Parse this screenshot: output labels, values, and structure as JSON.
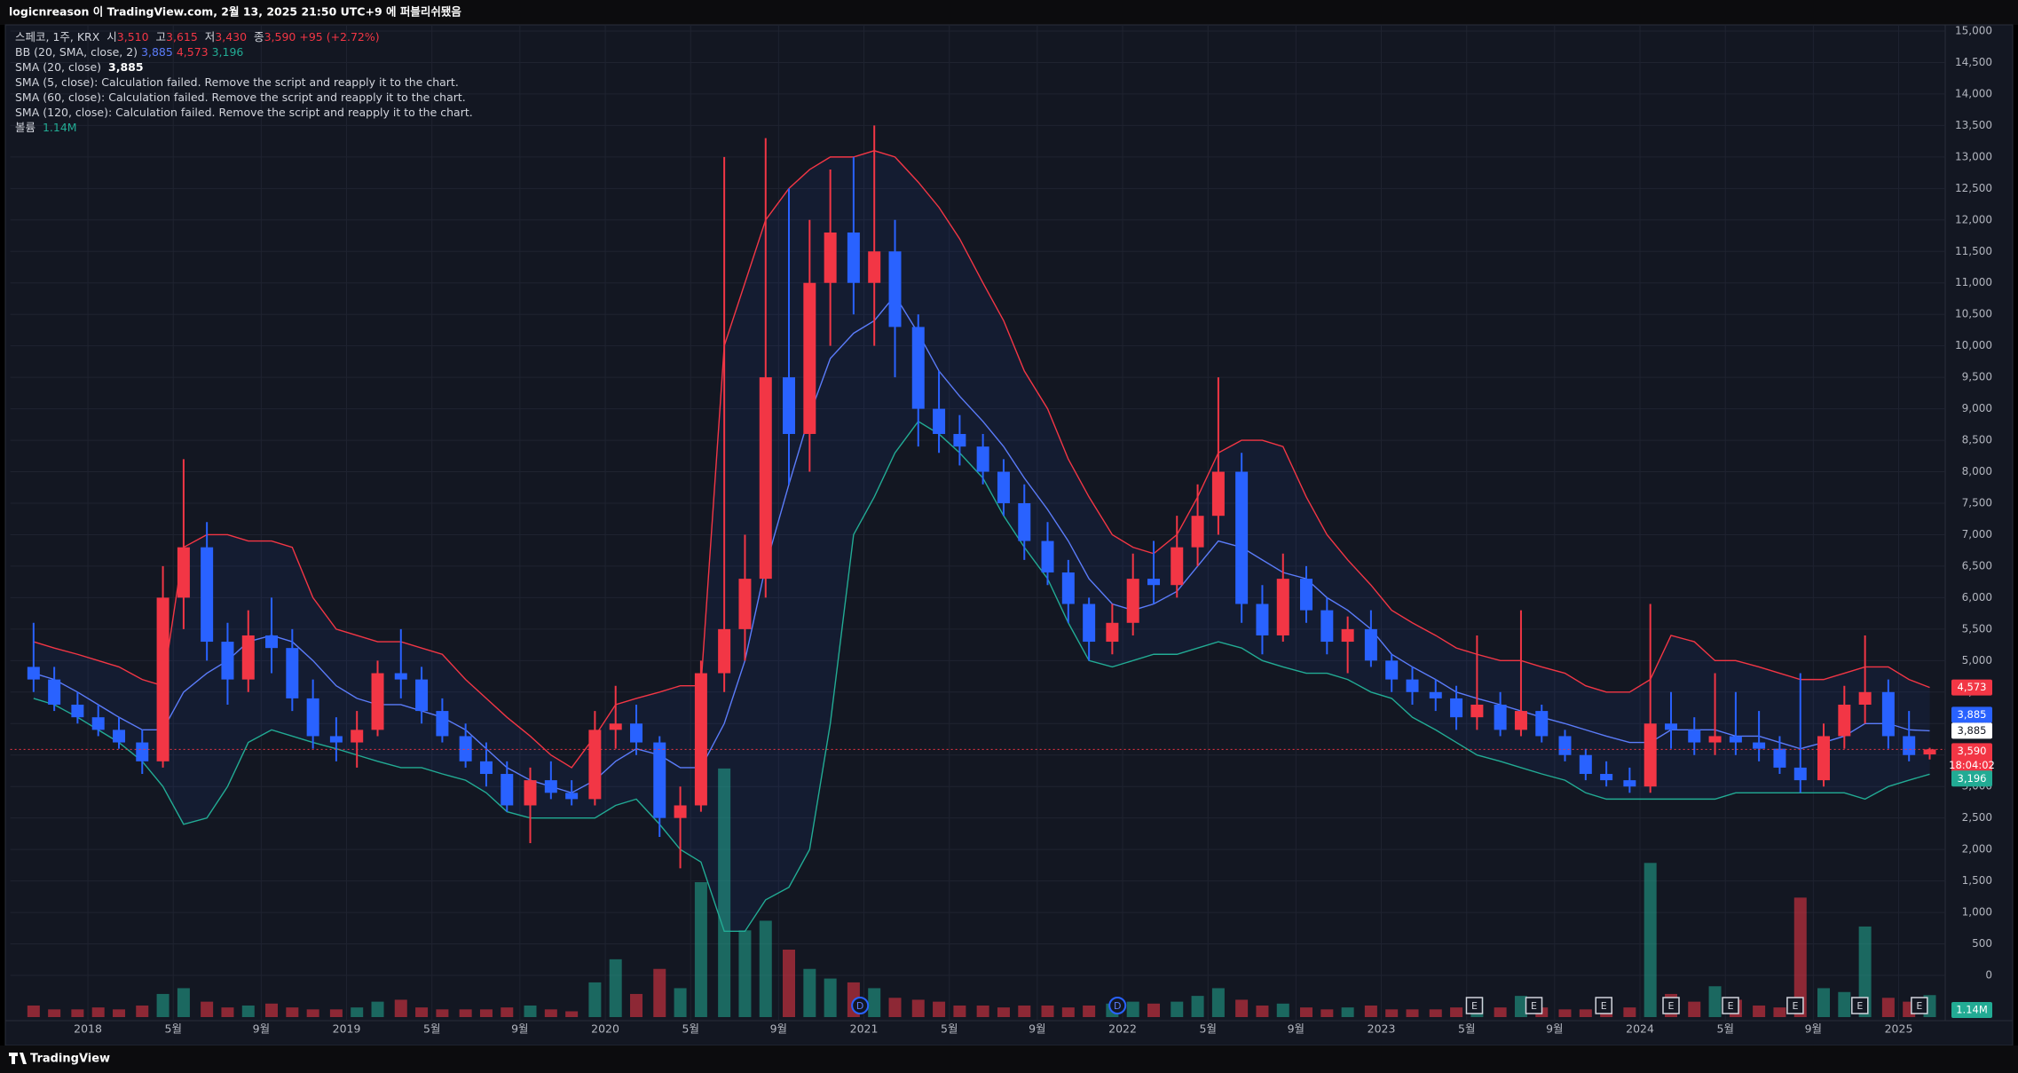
{
  "chart_data": {
    "type": "candlestick",
    "publisher_note": "logicnreason 이 TradingView.com, 2월 13, 2025 21:50 UTC+9 에 퍼블리쉬됐음",
    "symbol_label": "스페코, 1주, KRX",
    "ohlc_prefixes": [
      "시",
      "고",
      "저",
      "종"
    ],
    "ohlc_labels": [
      "3,510",
      "3,615",
      "3,430",
      "3,590"
    ],
    "change_label": "+95 (+2.72%)",
    "indicators": [
      "BB (20, SMA, close, 2)",
      "SMA (20, close)",
      "SMA (5, close): Calculation failed. Remove the script and reapply it to the chart.",
      "SMA (60, close): Calculation failed. Remove the script and reapply it to the chart.",
      "SMA (120, close): Calculation failed. Remove the script and reapply it to the chart.",
      "볼륨"
    ],
    "countdown": "18:04:02",
    "footer": "TradingView",
    "up_color": "#f23645",
    "down_color": "#2962ff",
    "xlim": [
      2017.7,
      2025.18
    ],
    "xticks": [
      2018,
      {
        "value": 2018.33,
        "label": "5월"
      },
      {
        "value": 2018.67,
        "label": "9월"
      },
      2019,
      {
        "value": 2019.33,
        "label": "5월"
      },
      {
        "value": 2019.67,
        "label": "9월"
      },
      2020,
      {
        "value": 2020.33,
        "label": "5월"
      },
      {
        "value": 2020.67,
        "label": "9월"
      },
      2021,
      {
        "value": 2021.33,
        "label": "5월"
      },
      {
        "value": 2021.67,
        "label": "9월"
      },
      2022,
      {
        "value": 2022.33,
        "label": "5월"
      },
      {
        "value": 2022.67,
        "label": "9월"
      },
      2023,
      {
        "value": 2023.33,
        "label": "5월"
      },
      {
        "value": 2023.67,
        "label": "9월"
      },
      2024,
      {
        "value": 2024.33,
        "label": "5월"
      },
      {
        "value": 2024.67,
        "label": "9월"
      },
      2025
    ],
    "ylim": [
      0,
      15000
    ],
    "yticks": [
      0,
      500,
      {
        "value": 1000,
        "label": "1,000"
      },
      {
        "value": 1500,
        "label": "1,500"
      },
      {
        "value": 2000,
        "label": "2,000"
      },
      {
        "value": 2500,
        "label": "2,500"
      },
      {
        "value": 3000,
        "label": "3,000"
      },
      {
        "value": 3500,
        "label": "3,500"
      },
      {
        "value": 4000,
        "label": "4,000"
      },
      {
        "value": 4500,
        "label": "4,500"
      },
      {
        "value": 5000,
        "label": "5,000"
      },
      {
        "value": 5500,
        "label": "5,500"
      },
      {
        "value": 6000,
        "label": "6,000"
      },
      {
        "value": 6500,
        "label": "6,500"
      },
      {
        "value": 7000,
        "label": "7,000"
      },
      {
        "value": 7500,
        "label": "7,500"
      },
      {
        "value": 8000,
        "label": "8,000"
      },
      {
        "value": 8500,
        "label": "8,500"
      },
      {
        "value": 9000,
        "label": "9,000"
      },
      {
        "value": 9500,
        "label": "9,500"
      },
      {
        "value": 10000,
        "label": "10,000"
      },
      {
        "value": 10500,
        "label": "10,500"
      },
      {
        "value": 11000,
        "label": "11,000"
      },
      {
        "value": 11500,
        "label": "11,500"
      },
      {
        "value": 12000,
        "label": "12,000"
      },
      {
        "value": 12500,
        "label": "12,500"
      },
      {
        "value": 13000,
        "label": "13,000"
      },
      {
        "value": 13500,
        "label": "13,500"
      },
      {
        "value": 14000,
        "label": "14,000"
      },
      {
        "value": 14500,
        "label": "14,500"
      },
      {
        "value": 15000,
        "label": "15,000"
      }
    ],
    "grid": true,
    "x": [
      2017.79,
      2017.87,
      2017.96,
      2018.04,
      2018.12,
      2018.21,
      2018.29,
      2018.37,
      2018.46,
      2018.54,
      2018.62,
      2018.71,
      2018.79,
      2018.87,
      2018.96,
      2019.04,
      2019.12,
      2019.21,
      2019.29,
      2019.37,
      2019.46,
      2019.54,
      2019.62,
      2019.71,
      2019.79,
      2019.87,
      2019.96,
      2020.04,
      2020.12,
      2020.21,
      2020.29,
      2020.37,
      2020.46,
      2020.54,
      2020.62,
      2020.71,
      2020.79,
      2020.87,
      2020.96,
      2021.04,
      2021.12,
      2021.21,
      2021.29,
      2021.37,
      2021.46,
      2021.54,
      2021.62,
      2021.71,
      2021.79,
      2021.87,
      2021.96,
      2022.04,
      2022.12,
      2022.21,
      2022.29,
      2022.37,
      2022.46,
      2022.54,
      2022.62,
      2022.71,
      2022.79,
      2022.87,
      2022.96,
      2023.04,
      2023.12,
      2023.21,
      2023.29,
      2023.37,
      2023.46,
      2023.54,
      2023.62,
      2023.71,
      2023.79,
      2023.87,
      2023.96,
      2024.04,
      2024.12,
      2024.21,
      2024.29,
      2024.37,
      2024.46,
      2024.54,
      2024.62,
      2024.71,
      2024.79,
      2024.87,
      2024.96,
      2025.04,
      2025.12
    ],
    "open": [
      4900,
      4700,
      4300,
      4100,
      3900,
      3700,
      3400,
      6000,
      6800,
      5300,
      4700,
      5400,
      5200,
      4400,
      3800,
      3700,
      3900,
      4800,
      4700,
      4200,
      3800,
      3400,
      3200,
      2700,
      3100,
      2900,
      2800,
      3900,
      4000,
      3700,
      2500,
      2700,
      4800,
      5500,
      6300,
      9500,
      8600,
      11000,
      11800,
      11000,
      11500,
      10300,
      9000,
      8600,
      8400,
      8000,
      7500,
      6900,
      6400,
      5900,
      5300,
      5600,
      6300,
      6200,
      6800,
      7300,
      8000,
      5900,
      5400,
      6300,
      5800,
      5300,
      5500,
      5000,
      4700,
      4500,
      4400,
      4100,
      4300,
      3900,
      4200,
      3800,
      3500,
      3200,
      3100,
      3000,
      4000,
      3900,
      3700,
      3800,
      3700,
      3600,
      3300,
      3100,
      3800,
      4300,
      4500,
      3800,
      3510
    ],
    "high": [
      5600,
      4900,
      4500,
      4300,
      4100,
      3900,
      6500,
      8200,
      7200,
      5600,
      5800,
      6000,
      5500,
      4700,
      4100,
      4200,
      5000,
      5500,
      4900,
      4400,
      4000,
      3700,
      3400,
      3300,
      3400,
      3100,
      4200,
      4600,
      4300,
      3800,
      3000,
      5000,
      13000,
      7000,
      13300,
      12500,
      12000,
      12800,
      13000,
      13500,
      12000,
      10500,
      9600,
      8900,
      8600,
      8200,
      7800,
      7200,
      6600,
      6000,
      5900,
      6700,
      6900,
      7300,
      7800,
      9500,
      8300,
      6200,
      6700,
      6500,
      6000,
      5700,
      5800,
      5100,
      4900,
      4700,
      4600,
      5400,
      4500,
      5800,
      4300,
      3900,
      3600,
      3400,
      3300,
      5900,
      4500,
      4100,
      4800,
      4500,
      4200,
      3800,
      4800,
      4000,
      4600,
      5400,
      4700,
      4200,
      3615
    ],
    "low": [
      4500,
      4200,
      4000,
      3800,
      3600,
      3200,
      3300,
      5500,
      5000,
      4300,
      4500,
      4800,
      4200,
      3600,
      3400,
      3300,
      3800,
      4400,
      4000,
      3700,
      3300,
      3000,
      2600,
      2100,
      2800,
      2700,
      2700,
      3600,
      3500,
      2200,
      1700,
      2600,
      4500,
      5000,
      6000,
      7800,
      8000,
      10000,
      10500,
      10000,
      9500,
      8400,
      8300,
      8100,
      7800,
      7300,
      6600,
      6200,
      5600,
      5000,
      5100,
      5400,
      5900,
      6000,
      6500,
      7000,
      5600,
      5100,
      5300,
      5600,
      5100,
      4800,
      4900,
      4500,
      4300,
      4200,
      3900,
      3900,
      3800,
      3800,
      3700,
      3400,
      3100,
      3000,
      2900,
      2900,
      3600,
      3500,
      3500,
      3500,
      3400,
      3200,
      2900,
      3000,
      3600,
      4000,
      3600,
      3400,
      3430
    ],
    "close": [
      4700,
      4300,
      4100,
      3900,
      3700,
      3400,
      6000,
      6800,
      5300,
      4700,
      5400,
      5200,
      4400,
      3800,
      3700,
      3900,
      4800,
      4700,
      4200,
      3800,
      3400,
      3200,
      2700,
      3100,
      2900,
      2800,
      3900,
      4000,
      3700,
      2500,
      2700,
      4800,
      5500,
      6300,
      9500,
      8600,
      11000,
      11800,
      11000,
      11500,
      10300,
      9000,
      8600,
      8400,
      8000,
      7500,
      6900,
      6400,
      5900,
      5300,
      5600,
      6300,
      6200,
      6800,
      7300,
      8000,
      5900,
      5400,
      6300,
      5800,
      5300,
      5500,
      5000,
      4700,
      4500,
      4400,
      4100,
      4300,
      3900,
      4200,
      3800,
      3500,
      3200,
      3100,
      3000,
      4000,
      3900,
      3700,
      3800,
      3700,
      3600,
      3300,
      3100,
      3800,
      4300,
      4500,
      3800,
      3500,
      3590
    ],
    "overlays": [
      {
        "color": "#f23645",
        "last_label": "4,573",
        "values": [
          5300,
          5200,
          5100,
          5000,
          4900,
          4700,
          4600,
          6800,
          7000,
          7000,
          6900,
          6900,
          6800,
          6000,
          5500,
          5400,
          5300,
          5300,
          5200,
          5100,
          4700,
          4400,
          4100,
          3800,
          3500,
          3300,
          3800,
          4300,
          4400,
          4500,
          4600,
          4600,
          10000,
          11000,
          12000,
          12500,
          12800,
          13000,
          13000,
          13100,
          13000,
          12600,
          12200,
          11700,
          11000,
          10400,
          9600,
          9000,
          8200,
          7600,
          7000,
          6800,
          6700,
          7000,
          7600,
          8300,
          8500,
          8500,
          8400,
          7600,
          7000,
          6600,
          6200,
          5800,
          5600,
          5400,
          5200,
          5100,
          5000,
          5000,
          4900,
          4800,
          4600,
          4500,
          4500,
          4700,
          5400,
          5300,
          5000,
          5000,
          4900,
          4800,
          4700,
          4700,
          4800,
          4900,
          4900,
          4700,
          4573
        ]
      },
      {
        "color": "#5b7cfa",
        "last_label": "3,885",
        "values": [
          4800,
          4700,
          4500,
          4300,
          4100,
          3900,
          3900,
          4500,
          4800,
          5000,
          5300,
          5400,
          5300,
          5000,
          4600,
          4400,
          4300,
          4300,
          4200,
          4100,
          3900,
          3600,
          3300,
          3100,
          3000,
          2900,
          3100,
          3400,
          3600,
          3500,
          3300,
          3300,
          4000,
          5000,
          6500,
          7800,
          8900,
          9800,
          10200,
          10400,
          10800,
          10200,
          9600,
          9200,
          8800,
          8400,
          7900,
          7400,
          6900,
          6300,
          5900,
          5800,
          5900,
          6100,
          6500,
          6900,
          6800,
          6600,
          6400,
          6300,
          6000,
          5800,
          5500,
          5100,
          4900,
          4700,
          4500,
          4400,
          4300,
          4200,
          4100,
          4000,
          3900,
          3800,
          3700,
          3700,
          3900,
          3900,
          3900,
          3800,
          3800,
          3700,
          3600,
          3700,
          3800,
          4000,
          4000,
          3900,
          3885
        ]
      },
      {
        "color": "#22ab94",
        "last_label": "3,196",
        "values": [
          4400,
          4300,
          4100,
          3900,
          3700,
          3400,
          3000,
          2400,
          2500,
          3000,
          3700,
          3900,
          3800,
          3700,
          3600,
          3500,
          3400,
          3300,
          3300,
          3200,
          3100,
          2900,
          2600,
          2500,
          2500,
          2500,
          2500,
          2700,
          2800,
          2400,
          2000,
          1800,
          700,
          700,
          1200,
          1400,
          2000,
          4000,
          7000,
          7600,
          8300,
          8800,
          8600,
          8300,
          7900,
          7300,
          6800,
          6300,
          5600,
          5000,
          4900,
          5000,
          5100,
          5100,
          5200,
          5300,
          5200,
          5000,
          4900,
          4800,
          4800,
          4700,
          4500,
          4400,
          4100,
          3900,
          3700,
          3500,
          3400,
          3300,
          3200,
          3100,
          2900,
          2800,
          2800,
          2800,
          2800,
          2800,
          2800,
          2900,
          2900,
          2900,
          2900,
          2900,
          2900,
          2800,
          3000,
          3100,
          3196
        ]
      }
    ],
    "volume": {
      "up_color": "#22ab94",
      "down_color": "#f23645",
      "vlim": [
        0,
        14
      ],
      "last_label": "1.14M",
      "values": [
        0.6,
        0.4,
        0.4,
        0.5,
        0.4,
        0.6,
        1.2,
        1.5,
        0.8,
        0.5,
        0.6,
        0.7,
        0.5,
        0.4,
        0.4,
        0.5,
        0.8,
        0.9,
        0.5,
        0.4,
        0.4,
        0.4,
        0.5,
        0.6,
        0.4,
        0.3,
        1.8,
        3.0,
        1.2,
        2.5,
        1.5,
        7.0,
        12.9,
        4.5,
        5.0,
        3.5,
        2.5,
        2.0,
        1.8,
        1.5,
        1.0,
        0.9,
        0.8,
        0.6,
        0.6,
        0.5,
        0.6,
        0.6,
        0.5,
        0.6,
        0.7,
        0.8,
        0.7,
        0.8,
        1.1,
        1.5,
        0.9,
        0.6,
        0.7,
        0.5,
        0.4,
        0.5,
        0.6,
        0.4,
        0.4,
        0.4,
        0.5,
        1.0,
        0.5,
        1.1,
        0.5,
        0.4,
        0.4,
        0.4,
        0.5,
        8.0,
        1.2,
        0.8,
        1.6,
        0.9,
        0.6,
        0.5,
        6.2,
        1.5,
        1.3,
        4.7,
        1.0,
        0.8,
        1.14
      ]
    },
    "events": [
      {
        "x": 2020.985,
        "label": "D"
      },
      {
        "x": 2021.98,
        "label": "D"
      },
      {
        "x": 2023.36,
        "label": "E"
      },
      {
        "x": 2023.59,
        "label": "E"
      },
      {
        "x": 2023.86,
        "label": "E"
      },
      {
        "x": 2024.12,
        "label": "E"
      },
      {
        "x": 2024.35,
        "label": "E"
      },
      {
        "x": 2024.6,
        "label": "E"
      },
      {
        "x": 2024.85,
        "label": "E"
      },
      {
        "x": 2025.08,
        "label": "E"
      }
    ]
  }
}
